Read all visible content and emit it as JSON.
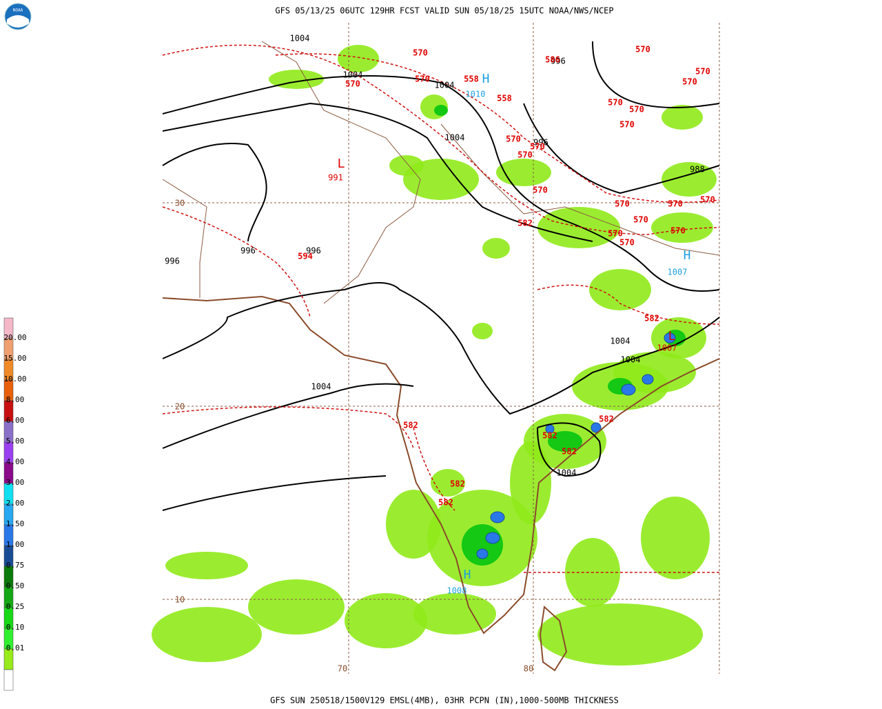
{
  "header": {
    "title": "GFS 05/13/25 06UTC 129HR FCST VALID SUN 05/18/25 15UTC NOAA/NWS/NCEP"
  },
  "logo": {
    "text": "NOAA"
  },
  "footer": {
    "text": "GFS SUN 250518/1500V129 EMSL(4MB), 03HR PCPN (IN),1000-500MB THICKNESS"
  },
  "legend": {
    "labels": [
      "20.00",
      "15.00",
      "10.00",
      "8.00",
      "6.00",
      "5.00",
      "4.00",
      "3.00",
      "2.00",
      "1.50",
      "1.00",
      "0.75",
      "0.50",
      "0.25",
      "0.10",
      "0.01"
    ],
    "colors": [
      "#f4b8c8",
      "#f0a070",
      "#f08a28",
      "#e8600c",
      "#c81010",
      "#8a70c8",
      "#9a40f0",
      "#8a0a8a",
      "#10e0f0",
      "#28a8f0",
      "#2a78e8",
      "#1a4c96",
      "#0a7a0a",
      "#14a814",
      "#18d818",
      "#30f030",
      "#98ea1a",
      "#ffffff"
    ]
  },
  "grid_labels": [
    "30",
    "20",
    "10",
    "70",
    "80"
  ],
  "pressure_labels": [
    "1004",
    "1004",
    "1004",
    "1004",
    "996",
    "996",
    "988",
    "996",
    "996",
    "996",
    "1004",
    "1004",
    "1004",
    "1004"
  ],
  "thickness_labels": [
    "570",
    "570",
    "570",
    "558",
    "558",
    "586",
    "570",
    "570",
    "570",
    "570",
    "570",
    "570",
    "570",
    "570",
    "570",
    "570",
    "570",
    "570",
    "570",
    "570",
    "570",
    "570",
    "570",
    "582",
    "594",
    "582",
    "582",
    "582",
    "582",
    "582",
    "582",
    "582"
  ],
  "centers": [
    {
      "symbol": "H",
      "value": "1010"
    },
    {
      "symbol": "L",
      "value": "991"
    },
    {
      "symbol": "H",
      "value": "1007"
    },
    {
      "symbol": "H",
      "value": "1008"
    },
    {
      "symbol": "L",
      "value": "1007"
    }
  ]
}
